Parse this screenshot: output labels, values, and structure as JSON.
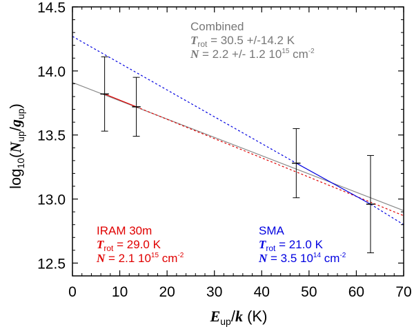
{
  "chart_data": {
    "type": "scatter",
    "xlim": [
      0,
      70
    ],
    "ylim": [
      12.4,
      14.5
    ],
    "x_ticks": [
      0,
      10,
      20,
      30,
      40,
      50,
      60,
      70
    ],
    "y_ticks": [
      12.5,
      13.0,
      13.5,
      14.0,
      14.5
    ],
    "y_tick_labels": [
      "12.5",
      "13.0",
      "13.5",
      "14.0",
      "14.5"
    ],
    "points": [
      {
        "x": 6.8,
        "y": 13.82,
        "err": 0.29,
        "xerr": 0.9
      },
      {
        "x": 13.5,
        "y": 13.72,
        "err": 0.23,
        "xerr": 0.9
      },
      {
        "x": 47.3,
        "y": 13.28,
        "err": 0.27,
        "xerr": 0.9
      },
      {
        "x": 63.0,
        "y": 12.96,
        "err": 0.38,
        "xerr": 0.9
      }
    ],
    "fits": [
      {
        "name": "Combined",
        "color": "#888888",
        "style": "solid",
        "x": [
          0,
          70
        ],
        "y": [
          13.91,
          12.91
        ]
      },
      {
        "name": "IRAM 30m",
        "color": "#e00000",
        "style": "solid",
        "x": [
          6.8,
          13.5
        ],
        "y": [
          13.82,
          13.72
        ]
      },
      {
        "name": "IRAM 30m",
        "color": "#e00000",
        "style": "dotted",
        "x": [
          13.5,
          70
        ],
        "y": [
          13.72,
          12.87
        ]
      },
      {
        "name": "SMA",
        "color": "#0000e0",
        "style": "solid",
        "x": [
          47.3,
          63.0
        ],
        "y": [
          13.28,
          12.96
        ]
      },
      {
        "name": "SMA",
        "color": "#0000e0",
        "style": "dotted",
        "x": [
          0,
          47.3
        ],
        "y": [
          14.27,
          13.28
        ]
      },
      {
        "name": "SMA",
        "color": "#0000e0",
        "style": "dotted",
        "x": [
          63.0,
          70
        ],
        "y": [
          12.96,
          12.8
        ]
      }
    ],
    "xlabel": {
      "main": "E",
      "sub": "up",
      "slash": "/",
      "k": "k",
      "unit": " (K)"
    },
    "ylabel": {
      "pre": "log",
      "sub10": "10",
      "open": "(",
      "N": "N",
      "sub_up1": "up",
      "slash": "/",
      "g": "g",
      "sub_up2": "up",
      "close": ")"
    },
    "annotations": {
      "combined": {
        "title": "Combined",
        "T": "T",
        "T_sub": "rot",
        "T_value": " =  30.5 +/-14.2 K",
        "N": "N",
        "N_value": " = 2.2 +/- 1.2 10",
        "N_exp": "15",
        "N_unit": " cm",
        "N_unit_exp": "-2",
        "color": "#777777"
      },
      "iram": {
        "title": "IRAM 30m",
        "T": "T",
        "T_sub": "rot",
        "T_value": " =  29.0 K",
        "N": "N",
        "N_value": " = 2.1 10",
        "N_exp": "15",
        "N_unit": " cm",
        "N_unit_exp": "-2",
        "color": "#e00000"
      },
      "sma": {
        "title": "SMA",
        "T": "T",
        "T_sub": "rot",
        "T_value": " =  21.0 K",
        "N": "N",
        "N_value": " = 3.5 10",
        "N_exp": "14",
        "N_unit": " cm",
        "N_unit_exp": "-2",
        "color": "#0000e0"
      }
    }
  }
}
